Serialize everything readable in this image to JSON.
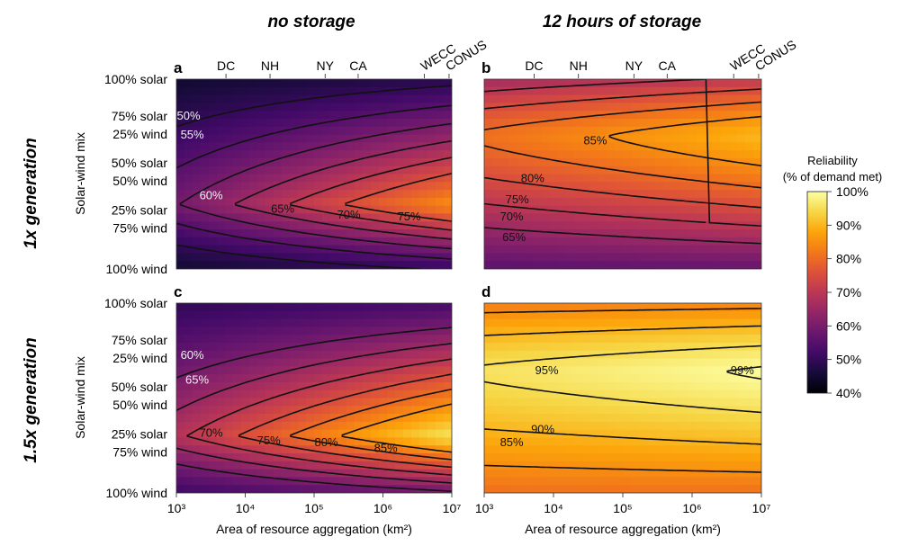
{
  "column_titles": [
    "no storage",
    "12 hours of storage"
  ],
  "row_titles": [
    "1x generation",
    "1.5x generation"
  ],
  "y_axis_label": "Solar-wind mix",
  "x_axis_label": "Area of resource aggregation (km²)",
  "region_labels": [
    "DC",
    "NH",
    "NY",
    "CA",
    "WECC",
    "CONUS"
  ],
  "colorbar": {
    "title_line1": "Reliability",
    "title_line2": "(% of demand met)",
    "ticks": [
      "100%",
      "90%",
      "80%",
      "70%",
      "60%",
      "50%",
      "40%"
    ],
    "colors": [
      "#fcffa4",
      "#f6d746",
      "#fca50a",
      "#f37819",
      "#dd513a",
      "#bc3754",
      "#932667",
      "#6a176e",
      "#420a68",
      "#160b39",
      "#000004"
    ]
  },
  "chart_data": [
    {
      "type": "heatmap",
      "panel": "a",
      "title": "no storage",
      "row_title": "1x generation",
      "xlabel": "",
      "ylabel": "Solar-wind mix",
      "x_scale": "log",
      "xlim": [
        1000,
        10000000
      ],
      "x_tick_labels": [
        "10³",
        "10⁴",
        "10⁵",
        "10⁶",
        "10⁷"
      ],
      "y_tick_labels": [
        "100% solar",
        "75% solar",
        "25% wind",
        "50% solar",
        "50% wind",
        "25% solar",
        "75% wind",
        "100% wind"
      ],
      "region_labels": [
        "DC",
        "NH",
        "NY",
        "CA",
        "WECC",
        "CONUS"
      ],
      "contour_labels": [
        {
          "text": "50%",
          "x": 1500,
          "mix_wind": 0.19
        },
        {
          "text": "55%",
          "x": 1700,
          "mix_wind": 0.29
        },
        {
          "text": "60%",
          "x": 3200,
          "mix_wind": 0.61
        },
        {
          "text": "65%",
          "x": 35000,
          "mix_wind": 0.68
        },
        {
          "text": "70%",
          "x": 320000,
          "mix_wind": 0.71
        },
        {
          "text": "75%",
          "x": 2400000,
          "mix_wind": 0.72
        }
      ],
      "value_range_percent": [
        44,
        79
      ]
    },
    {
      "type": "heatmap",
      "panel": "b",
      "title": "12 hours of storage",
      "row_title": "1x generation",
      "xlabel": "",
      "ylabel": "",
      "x_scale": "log",
      "xlim": [
        1000,
        10000000
      ],
      "region_labels": [
        "DC",
        "NH",
        "NY",
        "CA",
        "WECC",
        "CONUS"
      ],
      "contour_labels": [
        {
          "text": "85%",
          "x": 40000,
          "mix_wind": 0.32
        },
        {
          "text": "80%",
          "x": 5000,
          "mix_wind": 0.52
        },
        {
          "text": "75%",
          "x": 3000,
          "mix_wind": 0.63
        },
        {
          "text": "70%",
          "x": 2500,
          "mix_wind": 0.72
        },
        {
          "text": "65%",
          "x": 2700,
          "mix_wind": 0.83
        }
      ],
      "value_range_percent": [
        55,
        88
      ]
    },
    {
      "type": "heatmap",
      "panel": "c",
      "title": "",
      "row_title": "1.5x generation",
      "xlabel": "Area of resource aggregation (km²)",
      "ylabel": "Solar-wind mix",
      "x_scale": "log",
      "xlim": [
        1000,
        10000000
      ],
      "x_tick_labels": [
        "10³",
        "10⁴",
        "10⁵",
        "10⁶",
        "10⁷"
      ],
      "y_tick_labels": [
        "100% solar",
        "75% solar",
        "25% wind",
        "50% solar",
        "50% wind",
        "25% solar",
        "75% wind",
        "100% wind"
      ],
      "contour_labels": [
        {
          "text": "60%",
          "x": 1700,
          "mix_wind": 0.27
        },
        {
          "text": "65%",
          "x": 2000,
          "mix_wind": 0.4
        },
        {
          "text": "70%",
          "x": 3200,
          "mix_wind": 0.68
        },
        {
          "text": "75%",
          "x": 22000,
          "mix_wind": 0.72
        },
        {
          "text": "80%",
          "x": 150000,
          "mix_wind": 0.73
        },
        {
          "text": "85%",
          "x": 1100000,
          "mix_wind": 0.76
        }
      ],
      "value_range_percent": [
        48,
        90
      ]
    },
    {
      "type": "heatmap",
      "panel": "d",
      "title": "",
      "row_title": "1.5x generation",
      "xlabel": "Area of resource aggregation (km²)",
      "ylabel": "",
      "x_scale": "log",
      "xlim": [
        1000,
        10000000
      ],
      "x_tick_labels": [
        "10³",
        "10⁴",
        "10⁵",
        "10⁶",
        "10⁷"
      ],
      "contour_labels": [
        {
          "text": "95%",
          "x": 8000,
          "mix_wind": 0.35
        },
        {
          "text": "99%",
          "x": 5300000,
          "mix_wind": 0.35
        },
        {
          "text": "90%",
          "x": 7000,
          "mix_wind": 0.66
        },
        {
          "text": "85%",
          "x": 2500,
          "mix_wind": 0.73
        }
      ],
      "value_range_percent": [
        80,
        99.5
      ]
    }
  ]
}
